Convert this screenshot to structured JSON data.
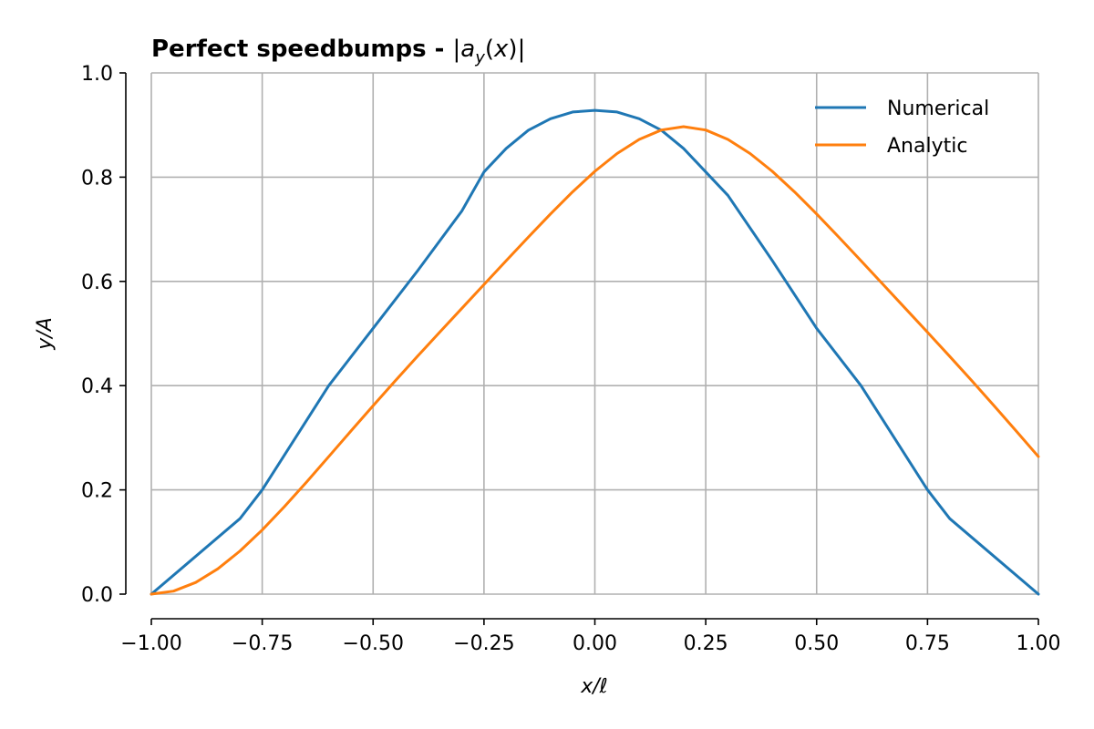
{
  "chart_data": {
    "type": "line",
    "title_bold": "Perfect speedbumps - ",
    "title_math": "|a_y(x)|",
    "xlabel": "x/ℓ",
    "ylabel": "y/A",
    "xlim": [
      -1.0,
      1.0
    ],
    "ylim": [
      0.0,
      1.0
    ],
    "xticks": [
      -1.0,
      -0.75,
      -0.5,
      -0.25,
      0.0,
      0.25,
      0.5,
      0.75,
      1.0
    ],
    "xtick_labels": [
      "−1.00",
      "−0.75",
      "−0.50",
      "−0.25",
      "0.00",
      "0.25",
      "0.50",
      "0.75",
      "1.00"
    ],
    "yticks": [
      0.0,
      0.2,
      0.4,
      0.6,
      0.8,
      1.0
    ],
    "ytick_labels": [
      "0.0",
      "0.2",
      "0.4",
      "0.6",
      "0.8",
      "1.0"
    ],
    "grid": true,
    "legend_position": "top-right",
    "series": [
      {
        "name": "Numerical",
        "color": "#1f77b4",
        "x": [
          -1.0,
          -0.8,
          -0.75,
          -0.6,
          -0.5,
          -0.4,
          -0.3,
          -0.25,
          -0.2,
          -0.15,
          -0.1,
          -0.05,
          0.0,
          0.05,
          0.1,
          0.15,
          0.2,
          0.25,
          0.3,
          0.4,
          0.5,
          0.6,
          0.75,
          0.8,
          1.0
        ],
        "y": [
          0.0,
          0.145,
          0.2,
          0.4,
          0.51,
          0.62,
          0.735,
          0.81,
          0.855,
          0.89,
          0.912,
          0.925,
          0.928,
          0.925,
          0.912,
          0.89,
          0.855,
          0.81,
          0.765,
          0.64,
          0.51,
          0.4,
          0.2,
          0.145,
          0.0
        ]
      },
      {
        "name": "Analytic",
        "color": "#ff7f0e",
        "x": [
          -1.0,
          -0.95,
          -0.9,
          -0.85,
          -0.8,
          -0.75,
          -0.7,
          -0.65,
          -0.6,
          -0.55,
          -0.5,
          -0.45,
          -0.4,
          -0.35,
          -0.3,
          -0.25,
          -0.2,
          -0.15,
          -0.1,
          -0.05,
          0.0,
          0.05,
          0.1,
          0.15,
          0.2,
          0.25,
          0.3,
          0.35,
          0.4,
          0.45,
          0.5,
          0.55,
          0.6,
          0.65,
          0.7,
          0.75,
          0.8,
          0.85,
          0.9,
          0.95,
          1.0
        ],
        "y": [
          0.0,
          0.0058,
          0.0224,
          0.0486,
          0.0828,
          0.1231,
          0.1678,
          0.2151,
          0.2639,
          0.3129,
          0.3615,
          0.4093,
          0.4562,
          0.5024,
          0.5482,
          0.5939,
          0.6396,
          0.6849,
          0.7294,
          0.7719,
          0.8112,
          0.8453,
          0.8724,
          0.8904,
          0.8969,
          0.8904,
          0.8724,
          0.8453,
          0.8112,
          0.7719,
          0.7294,
          0.6849,
          0.6396,
          0.5939,
          0.5482,
          0.5024,
          0.4562,
          0.4093,
          0.3615,
          0.3129,
          0.2639
        ]
      }
    ]
  }
}
